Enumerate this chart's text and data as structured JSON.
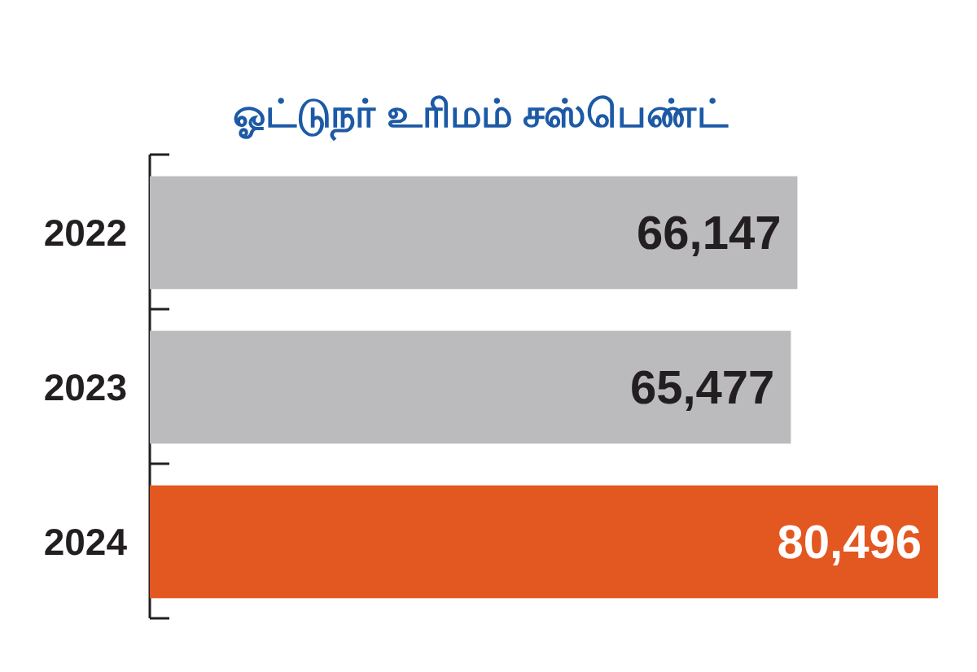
{
  "chart_data": {
    "type": "bar",
    "orientation": "horizontal",
    "title": "ஓட்டுநர் உரிமம் சஸ்பெண்ட்",
    "categories": [
      "2022",
      "2023",
      "2024"
    ],
    "values": [
      66147,
      65477,
      80496
    ],
    "colors": [
      "#bbbbbd",
      "#bbbbbd",
      "#e35720"
    ],
    "value_labels": [
      "66,147",
      "65,477",
      "80,496"
    ],
    "tick_labels": "y"
  }
}
